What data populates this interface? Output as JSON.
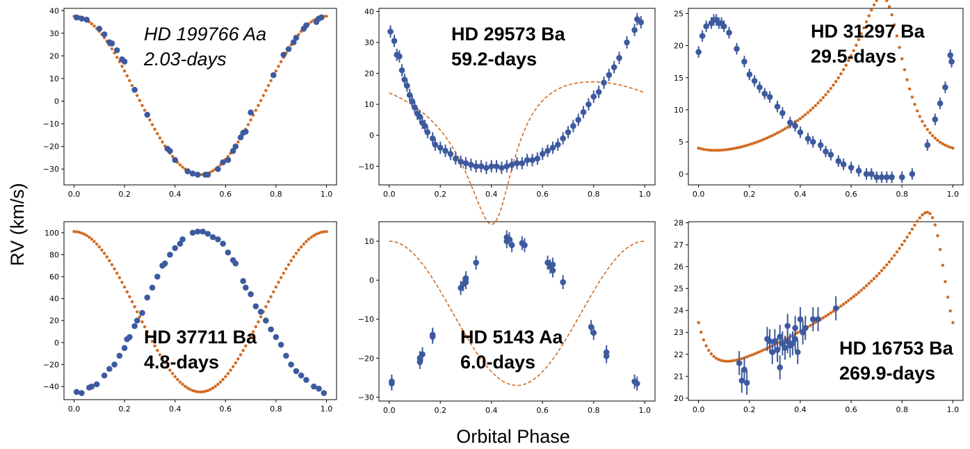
{
  "figure": {
    "ylabel": "RV (km/s)",
    "xlabel": "Orbital Phase"
  },
  "colors": {
    "model": "#d2691e",
    "data": "#3d5a9e"
  },
  "chart_data": [
    {
      "type": "scatter",
      "title_line1": "HD 199766 Aa",
      "title_line2": "2.03-days",
      "title_style": "italic",
      "xlim": [
        -0.04,
        1.04
      ],
      "ylim": [
        -37,
        41
      ],
      "xticks": [
        "0.0",
        "0.2",
        "0.4",
        "0.6",
        "0.8",
        "1.0"
      ],
      "yticks": [
        "−30",
        "−20",
        "−10",
        "0",
        "10",
        "20",
        "30",
        "40"
      ],
      "ytick_values": [
        -30,
        -20,
        -10,
        0,
        10,
        20,
        30,
        40
      ],
      "model": {
        "style": "dots",
        "shape": "cosine",
        "K": 35,
        "gamma": 2.5,
        "ecc": 0,
        "omega": 0,
        "tp": 0.0
      },
      "points": [
        [
          0.01,
          37
        ],
        [
          0.03,
          36.5
        ],
        [
          0.05,
          36
        ],
        [
          0.1,
          32
        ],
        [
          0.12,
          29.5
        ],
        [
          0.14,
          26
        ],
        [
          0.15,
          25.5
        ],
        [
          0.17,
          22.5
        ],
        [
          0.19,
          18.5
        ],
        [
          0.2,
          17.5
        ],
        [
          0.24,
          5
        ],
        [
          0.29,
          -6
        ],
        [
          0.37,
          -21
        ],
        [
          0.38,
          -22
        ],
        [
          0.4,
          -26
        ],
        [
          0.45,
          -31
        ],
        [
          0.47,
          -32
        ],
        [
          0.49,
          -32.5
        ],
        [
          0.52,
          -32.5
        ],
        [
          0.53,
          -32.5
        ],
        [
          0.57,
          -30
        ],
        [
          0.59,
          -27
        ],
        [
          0.61,
          -26
        ],
        [
          0.63,
          -22
        ],
        [
          0.64,
          -20
        ],
        [
          0.66,
          -16
        ],
        [
          0.67,
          -14
        ],
        [
          0.68,
          -13.5
        ],
        [
          0.7,
          -5
        ],
        [
          0.79,
          11.5
        ],
        [
          0.83,
          20.5
        ],
        [
          0.85,
          23
        ],
        [
          0.87,
          26
        ],
        [
          0.88,
          28
        ],
        [
          0.91,
          32
        ],
        [
          0.92,
          33.5
        ],
        [
          0.96,
          35
        ],
        [
          0.97,
          36.5
        ],
        [
          0.98,
          37
        ]
      ],
      "errors": false
    },
    {
      "type": "scatter",
      "title_line1": "HD 29573 Ba",
      "title_line2": "59.2-days",
      "title_style": "bold",
      "xlim": [
        -0.04,
        1.04
      ],
      "ylim": [
        -16,
        41
      ],
      "xticks": [
        "0.0",
        "0.2",
        "0.4",
        "0.6",
        "0.8",
        "1.0"
      ],
      "yticks": [
        "−10",
        "0",
        "10",
        "20",
        "30",
        "40"
      ],
      "ytick_values": [
        -10,
        0,
        10,
        20,
        30,
        40
      ],
      "model": {
        "style": "dashed",
        "shape": "kepler",
        "K": 23,
        "gamma": 4,
        "ecc": 0.45,
        "omega": 200,
        "tp": 0.42
      },
      "points": [
        [
          0.005,
          33.5
        ],
        [
          0.02,
          30.5
        ],
        [
          0.03,
          26
        ],
        [
          0.04,
          25.5
        ],
        [
          0.05,
          21
        ],
        [
          0.06,
          18
        ],
        [
          0.07,
          16
        ],
        [
          0.08,
          13
        ],
        [
          0.09,
          11
        ],
        [
          0.1,
          9
        ],
        [
          0.11,
          7
        ],
        [
          0.12,
          6
        ],
        [
          0.13,
          4
        ],
        [
          0.14,
          3
        ],
        [
          0.15,
          1
        ],
        [
          0.17,
          -1
        ],
        [
          0.18,
          -3
        ],
        [
          0.2,
          -4
        ],
        [
          0.22,
          -5
        ],
        [
          0.24,
          -6
        ],
        [
          0.26,
          -7.5
        ],
        [
          0.28,
          -8.5
        ],
        [
          0.3,
          -9
        ],
        [
          0.32,
          -9.5
        ],
        [
          0.34,
          -10
        ],
        [
          0.36,
          -10
        ],
        [
          0.38,
          -10.5
        ],
        [
          0.4,
          -10
        ],
        [
          0.42,
          -10
        ],
        [
          0.44,
          -10.5
        ],
        [
          0.46,
          -10
        ],
        [
          0.48,
          -9.5
        ],
        [
          0.5,
          -9
        ],
        [
          0.52,
          -9
        ],
        [
          0.54,
          -8
        ],
        [
          0.56,
          -8
        ],
        [
          0.58,
          -7.5
        ],
        [
          0.6,
          -6
        ],
        [
          0.62,
          -5
        ],
        [
          0.64,
          -4
        ],
        [
          0.66,
          -3
        ],
        [
          0.68,
          -1
        ],
        [
          0.7,
          1
        ],
        [
          0.72,
          3
        ],
        [
          0.74,
          5
        ],
        [
          0.76,
          7.5
        ],
        [
          0.78,
          10
        ],
        [
          0.8,
          12.5
        ],
        [
          0.82,
          14
        ],
        [
          0.84,
          17
        ],
        [
          0.86,
          19.5
        ],
        [
          0.88,
          22
        ],
        [
          0.9,
          25
        ],
        [
          0.93,
          30
        ],
        [
          0.96,
          34
        ],
        [
          0.97,
          37.5
        ],
        [
          0.985,
          36.5
        ]
      ],
      "errors": true,
      "err": 2
    },
    {
      "type": "scatter",
      "title_line1": "HD 31297 Ba",
      "title_line2": "29.5-days",
      "title_style": "bold",
      "xlim": [
        -0.04,
        1.04
      ],
      "ylim": [
        -1.7,
        25.8
      ],
      "xticks": [
        "0.0",
        "0.2",
        "0.4",
        "0.6",
        "0.8",
        "1.0"
      ],
      "yticks": [
        "0",
        "5",
        "10",
        "15",
        "20",
        "25"
      ],
      "ytick_values": [
        0,
        5,
        10,
        15,
        20,
        25
      ],
      "model": {
        "style": "dots",
        "shape": "kepler",
        "K": 12,
        "gamma": 11,
        "ecc": 0.45,
        "omega": 30,
        "tp": 0.75
      },
      "points": [
        [
          0.0,
          19
        ],
        [
          0.015,
          21.5
        ],
        [
          0.03,
          23
        ],
        [
          0.05,
          23.5
        ],
        [
          0.06,
          24
        ],
        [
          0.07,
          24
        ],
        [
          0.08,
          23.5
        ],
        [
          0.09,
          23.5
        ],
        [
          0.1,
          23
        ],
        [
          0.12,
          22
        ],
        [
          0.15,
          19.5
        ],
        [
          0.18,
          17.5
        ],
        [
          0.2,
          15.5
        ],
        [
          0.22,
          14.5
        ],
        [
          0.24,
          13.5
        ],
        [
          0.26,
          12.5
        ],
        [
          0.28,
          12
        ],
        [
          0.31,
          10.5
        ],
        [
          0.33,
          9.5
        ],
        [
          0.36,
          8
        ],
        [
          0.38,
          7.5
        ],
        [
          0.4,
          6.5
        ],
        [
          0.43,
          5.5
        ],
        [
          0.45,
          5
        ],
        [
          0.48,
          4.5
        ],
        [
          0.5,
          3.5
        ],
        [
          0.52,
          3
        ],
        [
          0.55,
          2
        ],
        [
          0.57,
          1.5
        ],
        [
          0.6,
          1
        ],
        [
          0.63,
          0.5
        ],
        [
          0.66,
          0
        ],
        [
          0.68,
          0
        ],
        [
          0.7,
          -0.5
        ],
        [
          0.72,
          -0.5
        ],
        [
          0.74,
          -0.5
        ],
        [
          0.76,
          -0.5
        ],
        [
          0.8,
          -0.5
        ],
        [
          0.84,
          0
        ],
        [
          0.9,
          4.5
        ],
        [
          0.93,
          8.5
        ],
        [
          0.95,
          11
        ],
        [
          0.97,
          13.5
        ],
        [
          0.99,
          18.5
        ],
        [
          0.995,
          17.5
        ]
      ],
      "errors": true,
      "err": 0.9
    },
    {
      "type": "scatter",
      "title_line1": "HD 37711 Ba",
      "title_line2": "4.8-days",
      "title_style": "bold",
      "xlim": [
        -0.04,
        1.04
      ],
      "ylim": [
        -52,
        110
      ],
      "xticks": [
        "0.0",
        "0.2",
        "0.4",
        "0.6",
        "0.8",
        "1.0"
      ],
      "yticks": [
        "−40",
        "−20",
        "0",
        "20",
        "40",
        "60",
        "80",
        "100"
      ],
      "ytick_values": [
        -40,
        -20,
        0,
        20,
        40,
        60,
        80,
        100
      ],
      "model": {
        "style": "dots",
        "shape": "cosine_neg",
        "K": 73,
        "gamma": 28,
        "ecc": 0,
        "omega": 0,
        "tp": 0.5
      },
      "points": [
        [
          0.01,
          -45
        ],
        [
          0.03,
          -46
        ],
        [
          0.06,
          -41
        ],
        [
          0.07,
          -40
        ],
        [
          0.09,
          -38
        ],
        [
          0.12,
          -30
        ],
        [
          0.14,
          -24
        ],
        [
          0.16,
          -20
        ],
        [
          0.18,
          -12
        ],
        [
          0.2,
          -5
        ],
        [
          0.21,
          3
        ],
        [
          0.22,
          5
        ],
        [
          0.24,
          15
        ],
        [
          0.25,
          20
        ],
        [
          0.27,
          27
        ],
        [
          0.29,
          41
        ],
        [
          0.31,
          50
        ],
        [
          0.33,
          60
        ],
        [
          0.35,
          70
        ],
        [
          0.36,
          72
        ],
        [
          0.38,
          80
        ],
        [
          0.4,
          86
        ],
        [
          0.42,
          90
        ],
        [
          0.43,
          94
        ],
        [
          0.47,
          100
        ],
        [
          0.49,
          101
        ],
        [
          0.51,
          101
        ],
        [
          0.53,
          99
        ],
        [
          0.55,
          96
        ],
        [
          0.57,
          94
        ],
        [
          0.59,
          90
        ],
        [
          0.61,
          82
        ],
        [
          0.63,
          75
        ],
        [
          0.64,
          72
        ],
        [
          0.67,
          56
        ],
        [
          0.68,
          50
        ],
        [
          0.7,
          44
        ],
        [
          0.72,
          33
        ],
        [
          0.74,
          28
        ],
        [
          0.76,
          20
        ],
        [
          0.78,
          12
        ],
        [
          0.8,
          5
        ],
        [
          0.82,
          -2
        ],
        [
          0.84,
          -12
        ],
        [
          0.86,
          -20
        ],
        [
          0.88,
          -26
        ],
        [
          0.9,
          -30
        ],
        [
          0.92,
          -34
        ],
        [
          0.95,
          -40
        ],
        [
          0.97,
          -42
        ],
        [
          0.99,
          -46
        ]
      ],
      "errors": false
    },
    {
      "type": "scatter",
      "title_line1": "HD 5143 Aa",
      "title_line2": "6.0-days",
      "title_style": "bold",
      "xlim": [
        -0.04,
        1.04
      ],
      "ylim": [
        -31,
        15
      ],
      "xticks": [
        "0.0",
        "0.2",
        "0.4",
        "0.6",
        "0.8",
        "1.0"
      ],
      "yticks": [
        "−30",
        "−20",
        "−10",
        "0",
        "10"
      ],
      "ytick_values": [
        -30,
        -20,
        -10,
        0,
        10
      ],
      "model": {
        "style": "dashed",
        "shape": "cosine_neg",
        "K": 18.5,
        "gamma": -8.5,
        "ecc": 0,
        "omega": 0,
        "tp": 0.5
      },
      "points": [
        [
          0.01,
          -26.5
        ],
        [
          0.01,
          -26
        ],
        [
          0.12,
          -20
        ],
        [
          0.12,
          -21
        ],
        [
          0.13,
          -19
        ],
        [
          0.17,
          -14.5
        ],
        [
          0.17,
          -14
        ],
        [
          0.28,
          -2
        ],
        [
          0.29,
          -1
        ],
        [
          0.3,
          -0.5
        ],
        [
          0.3,
          0.5
        ],
        [
          0.34,
          4.5
        ],
        [
          0.46,
          11
        ],
        [
          0.46,
          10
        ],
        [
          0.47,
          10.5
        ],
        [
          0.48,
          9
        ],
        [
          0.52,
          9.5
        ],
        [
          0.53,
          9
        ],
        [
          0.62,
          4.5
        ],
        [
          0.63,
          3.5
        ],
        [
          0.64,
          4
        ],
        [
          0.64,
          2.5
        ],
        [
          0.68,
          -0.5
        ],
        [
          0.79,
          -12
        ],
        [
          0.8,
          -13.5
        ],
        [
          0.85,
          -18.5
        ],
        [
          0.85,
          -19.5
        ],
        [
          0.96,
          -26
        ],
        [
          0.97,
          -26.5
        ]
      ],
      "errors": true,
      "err": 1.8
    },
    {
      "type": "scatter",
      "title_line1": "HD 16753 Ba",
      "title_line2": "269.9-days",
      "title_style": "bold",
      "xlim": [
        -0.04,
        1.04
      ],
      "ylim": [
        19.9,
        28.05
      ],
      "xticks": [
        "0.0",
        "0.2",
        "0.4",
        "0.6",
        "0.8",
        "1.0"
      ],
      "yticks": [
        "20",
        "21",
        "22",
        "23",
        "24",
        "25",
        "26",
        "27",
        "28"
      ],
      "ytick_values": [
        20,
        21,
        22,
        23,
        24,
        25,
        26,
        27,
        28
      ],
      "model": {
        "style": "dots",
        "shape": "kepler",
        "K": 3.4,
        "gamma": 24.2,
        "ecc": 0.52,
        "omega": 60,
        "tp": 0.95
      },
      "points": [
        [
          0.16,
          21.6
        ],
        [
          0.17,
          20.8
        ],
        [
          0.18,
          21.3
        ],
        [
          0.19,
          20.7
        ],
        [
          0.27,
          22.7
        ],
        [
          0.28,
          22.6
        ],
        [
          0.29,
          22.1
        ],
        [
          0.3,
          22.6
        ],
        [
          0.31,
          22.2
        ],
        [
          0.32,
          21.4
        ],
        [
          0.32,
          22.8
        ],
        [
          0.33,
          22.5
        ],
        [
          0.34,
          22.3
        ],
        [
          0.35,
          22.6
        ],
        [
          0.35,
          23.3
        ],
        [
          0.36,
          22.4
        ],
        [
          0.37,
          22.5
        ],
        [
          0.38,
          23.2
        ],
        [
          0.38,
          22.7
        ],
        [
          0.39,
          22.1
        ],
        [
          0.4,
          23.6
        ],
        [
          0.41,
          23
        ],
        [
          0.42,
          23.2
        ],
        [
          0.45,
          23.6
        ],
        [
          0.47,
          23.6
        ],
        [
          0.54,
          24.1
        ]
      ],
      "errors": true,
      "err": 0.55
    }
  ]
}
